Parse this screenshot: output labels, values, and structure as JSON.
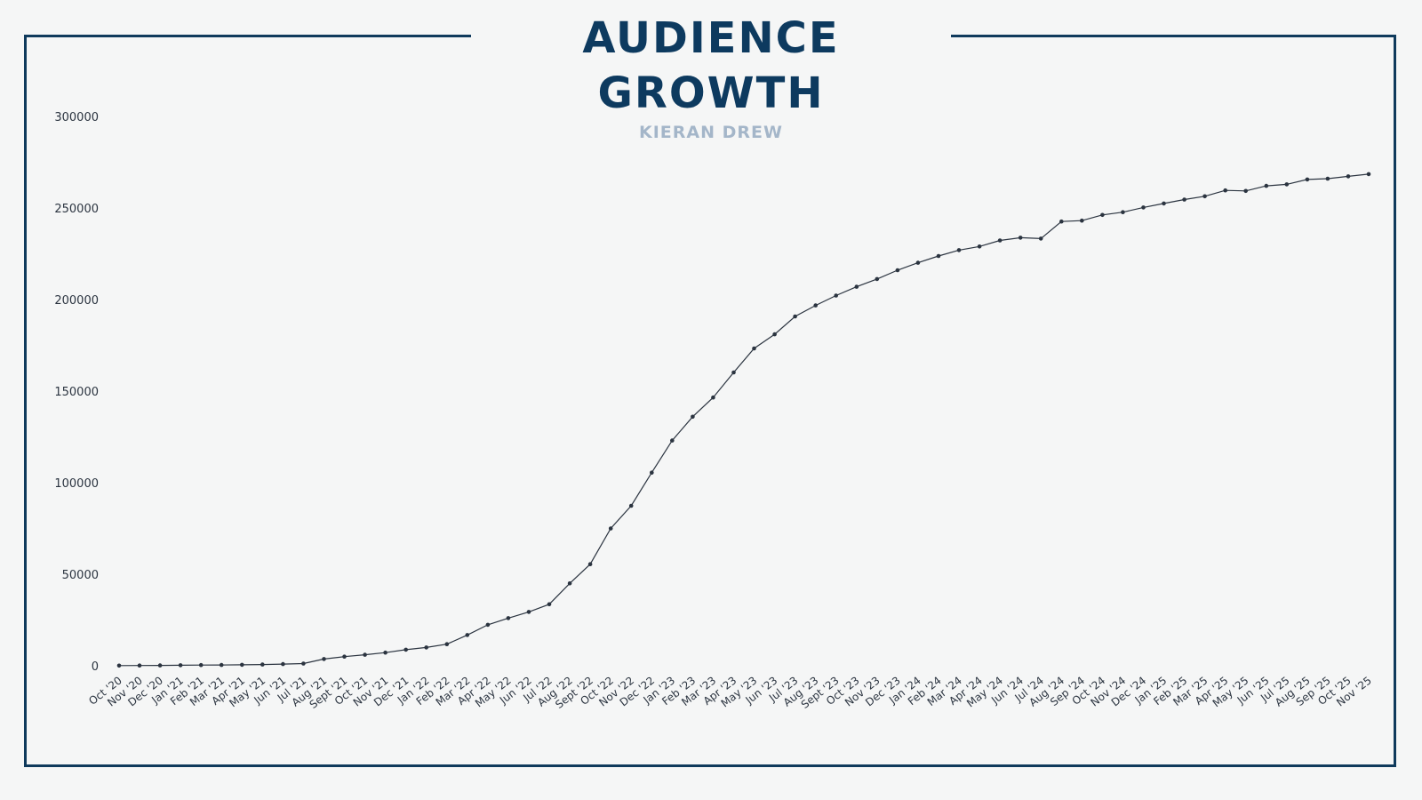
{
  "header": {
    "title": "AUDIENCE GROWTH",
    "subtitle": "KIERAN DREW"
  },
  "colors": {
    "frame": "#0f3a5c",
    "title": "#0d3a5f",
    "subtitle": "#a4b6c9",
    "line": "#2b3440",
    "tick_text": "#2b3440",
    "background": "#f5f6f6"
  },
  "chart_data": {
    "type": "line",
    "title": "AUDIENCE GROWTH",
    "subtitle": "KIERAN DREW",
    "xlabel": "",
    "ylabel": "",
    "ylim": [
      0,
      300000
    ],
    "yticks": [
      0,
      50000,
      100000,
      150000,
      200000,
      250000,
      300000
    ],
    "grid": false,
    "legend": "none",
    "categories": [
      "Oct '20",
      "Nov '20",
      "Dec '20",
      "Jan '21",
      "Feb '21",
      "Mar '21",
      "Apr '21",
      "May '21",
      "Jun '21",
      "Jul '21",
      "Aug '21",
      "Sept '21",
      "Oct '21",
      "Nov '21",
      "Dec '21",
      "Jan '22",
      "Feb '22",
      "Mar '22",
      "Apr '22",
      "May '22",
      "Jun '22",
      "Jul '22",
      "Aug '22",
      "Sept '22",
      "Oct '22",
      "Nov '22",
      "Dec '22",
      "Jan '23",
      "Feb '23",
      "Mar '23",
      "Apr '23",
      "May '23",
      "Jun '23",
      "Jul '23",
      "Aug '23",
      "Sept '23",
      "Oct '23",
      "Nov '23",
      "Dec '23",
      "Jan '24",
      "Feb '24",
      "Mar '24",
      "Apr '24",
      "May '24",
      "Jun '24",
      "Jul '24",
      "Aug '24",
      "Sep '24",
      "Oct '24",
      "Nov '24",
      "Dec '24",
      "Jan '25",
      "Feb '25",
      "Mar '25",
      "Apr '25",
      "May '25",
      "Jun '25",
      "Jul '25",
      "Aug '25",
      "Sep '25",
      "Oct '25",
      "Nov '25"
    ],
    "series": [
      {
        "values": [
          100,
          150,
          200,
          300,
          400,
          450,
          550,
          700,
          900,
          1200,
          3700,
          5000,
          6000,
          7200,
          8800,
          10000,
          11800,
          16800,
          22400,
          26000,
          29400,
          33600,
          45000,
          55500,
          75000,
          87400,
          105500,
          123000,
          136000,
          146500,
          160200,
          173300,
          181000,
          190800,
          196800,
          202200,
          207000,
          211200,
          216000,
          220100,
          223800,
          227000,
          229000,
          232300,
          233800,
          233300,
          242600,
          243100,
          246200,
          247700,
          250300,
          252500,
          254600,
          256400,
          259600,
          259300,
          262100,
          262900,
          265600,
          266000,
          267300,
          268500
        ]
      }
    ]
  }
}
